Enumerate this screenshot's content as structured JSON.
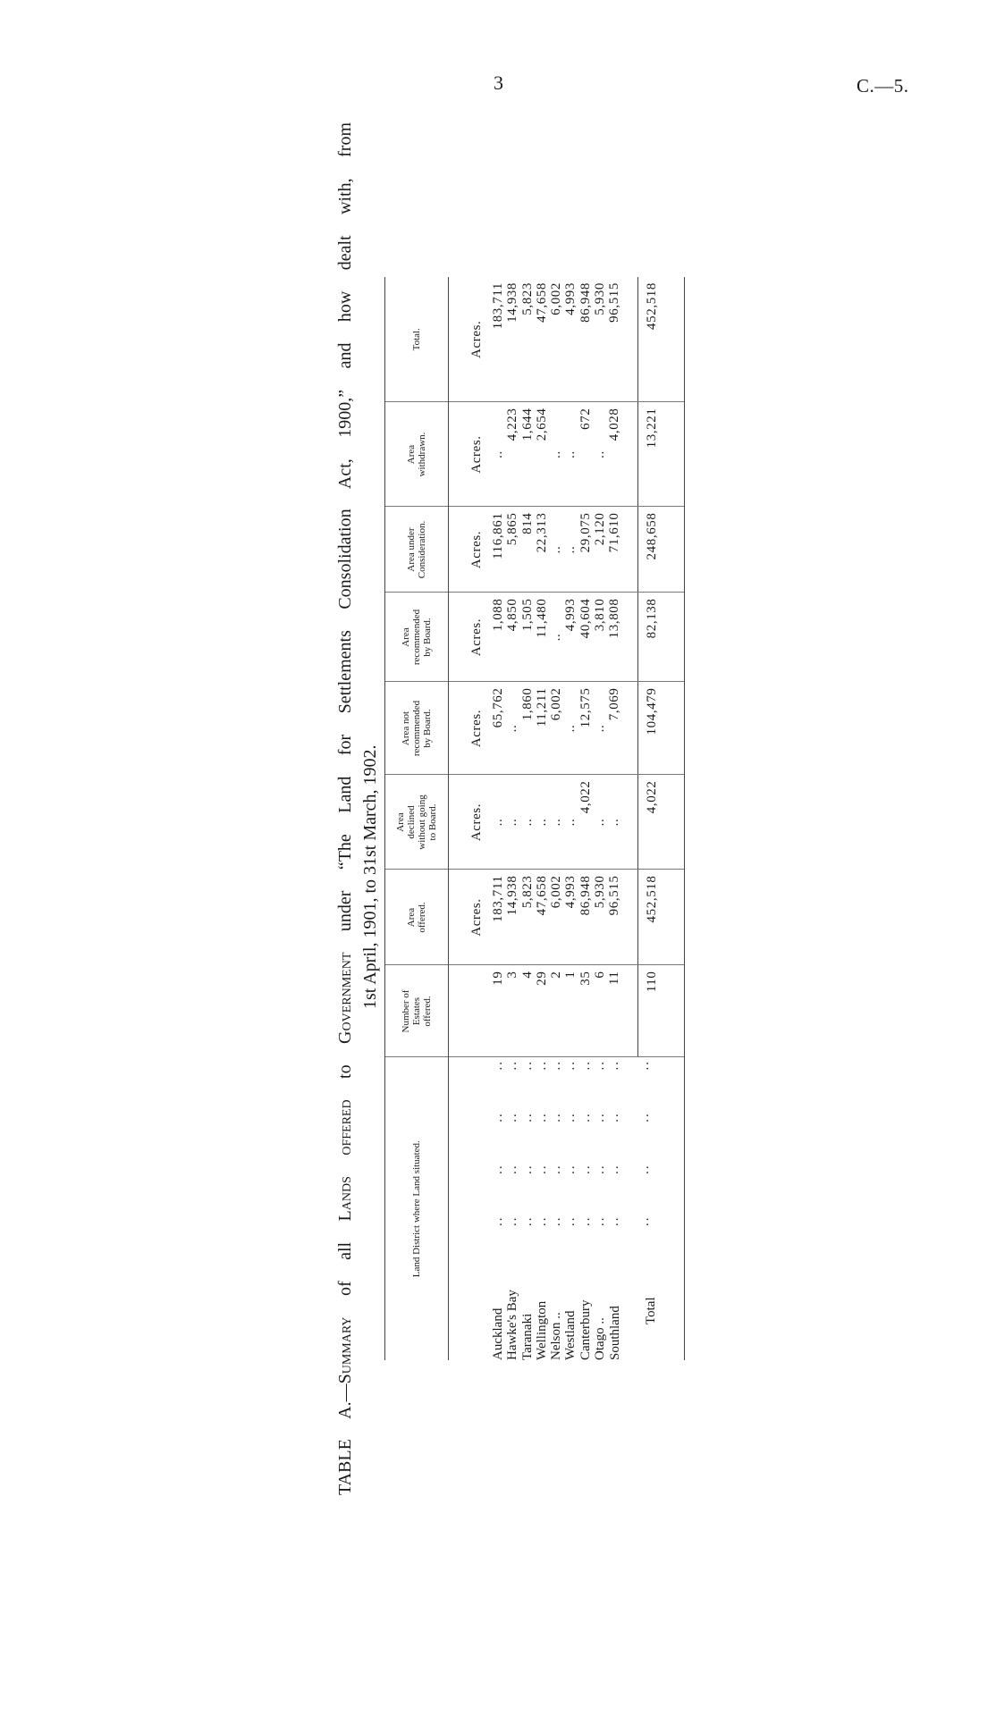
{
  "page": {
    "number": "3",
    "code": "C.—5."
  },
  "title": {
    "line1": [
      {
        "text": "TABLE A.—",
        "smallcaps": false
      },
      {
        "text": "Summary",
        "smallcaps": true
      },
      {
        "text": " of all ",
        "smallcaps": false
      },
      {
        "text": "Lands offered",
        "smallcaps": true
      },
      {
        "text": " to ",
        "smallcaps": false
      },
      {
        "text": "Government",
        "smallcaps": true
      },
      {
        "text": " under “The Land for Settlements Consolidation Act, 1900,” and how dealt with, from",
        "smallcaps": false
      }
    ],
    "line2": "1st April, 1901, to 31st March, 1902."
  },
  "table": {
    "headers": [
      "Land District where Land situated.",
      "Number of\nEstates\noffered.",
      "Area\noffered.",
      "Area\ndeclined\nwithout going\nto Board.",
      "Area not\nrecommended\nby Board.",
      "Area\nrecommended\nby Board.",
      "Area under\nConsideration.",
      "Area\nwithdrawn.",
      "Total."
    ],
    "units": [
      "",
      "",
      "Acres.",
      "Acres.",
      "Acres.",
      "Acres.",
      "Acres.",
      "Acres.",
      "Acres."
    ],
    "leader": "..",
    "rows": [
      {
        "district": "Auckland",
        "values": [
          "19",
          "183,711",
          "..",
          "65,762",
          "1,088",
          "116,861",
          "..",
          "183,711"
        ]
      },
      {
        "district": "Hawke's Bay",
        "values": [
          "3",
          "14,938",
          "..",
          "..",
          "4,850",
          "5,865",
          "4,223",
          "14,938"
        ]
      },
      {
        "district": "Taranaki",
        "values": [
          "4",
          "5,823",
          "..",
          "1,860",
          "1,505",
          "814",
          "1,644",
          "5,823"
        ]
      },
      {
        "district": "Wellington",
        "values": [
          "29",
          "47,658",
          "..",
          "11,211",
          "11,480",
          "22,313",
          "2,654",
          "47,658"
        ]
      },
      {
        "district": "Nelson ..",
        "values": [
          "2",
          "6,002",
          "..",
          "6,002",
          "..",
          "..",
          "..",
          "6,002"
        ]
      },
      {
        "district": "Westland",
        "values": [
          "1",
          "4,993",
          "..",
          "..",
          "4,993",
          "..",
          "..",
          "4,993"
        ]
      },
      {
        "district": "Canterbury",
        "values": [
          "35",
          "86,948",
          "4,022",
          "12,575",
          "40,604",
          "29,075",
          "672",
          "86,948"
        ]
      },
      {
        "district": "Otago ..",
        "values": [
          "6",
          "5,930",
          "..",
          "..",
          "3,810",
          "2,120",
          "..",
          "5,930"
        ]
      },
      {
        "district": "Southland",
        "values": [
          "11",
          "96,515",
          "..",
          "7,069",
          "13,808",
          "71,610",
          "4,028",
          "96,515"
        ]
      }
    ],
    "total": {
      "label": "Total",
      "values": [
        "110",
        "452,518",
        "4,022",
        "104,479",
        "82,138",
        "248,658",
        "13,221",
        "452,518"
      ]
    }
  }
}
